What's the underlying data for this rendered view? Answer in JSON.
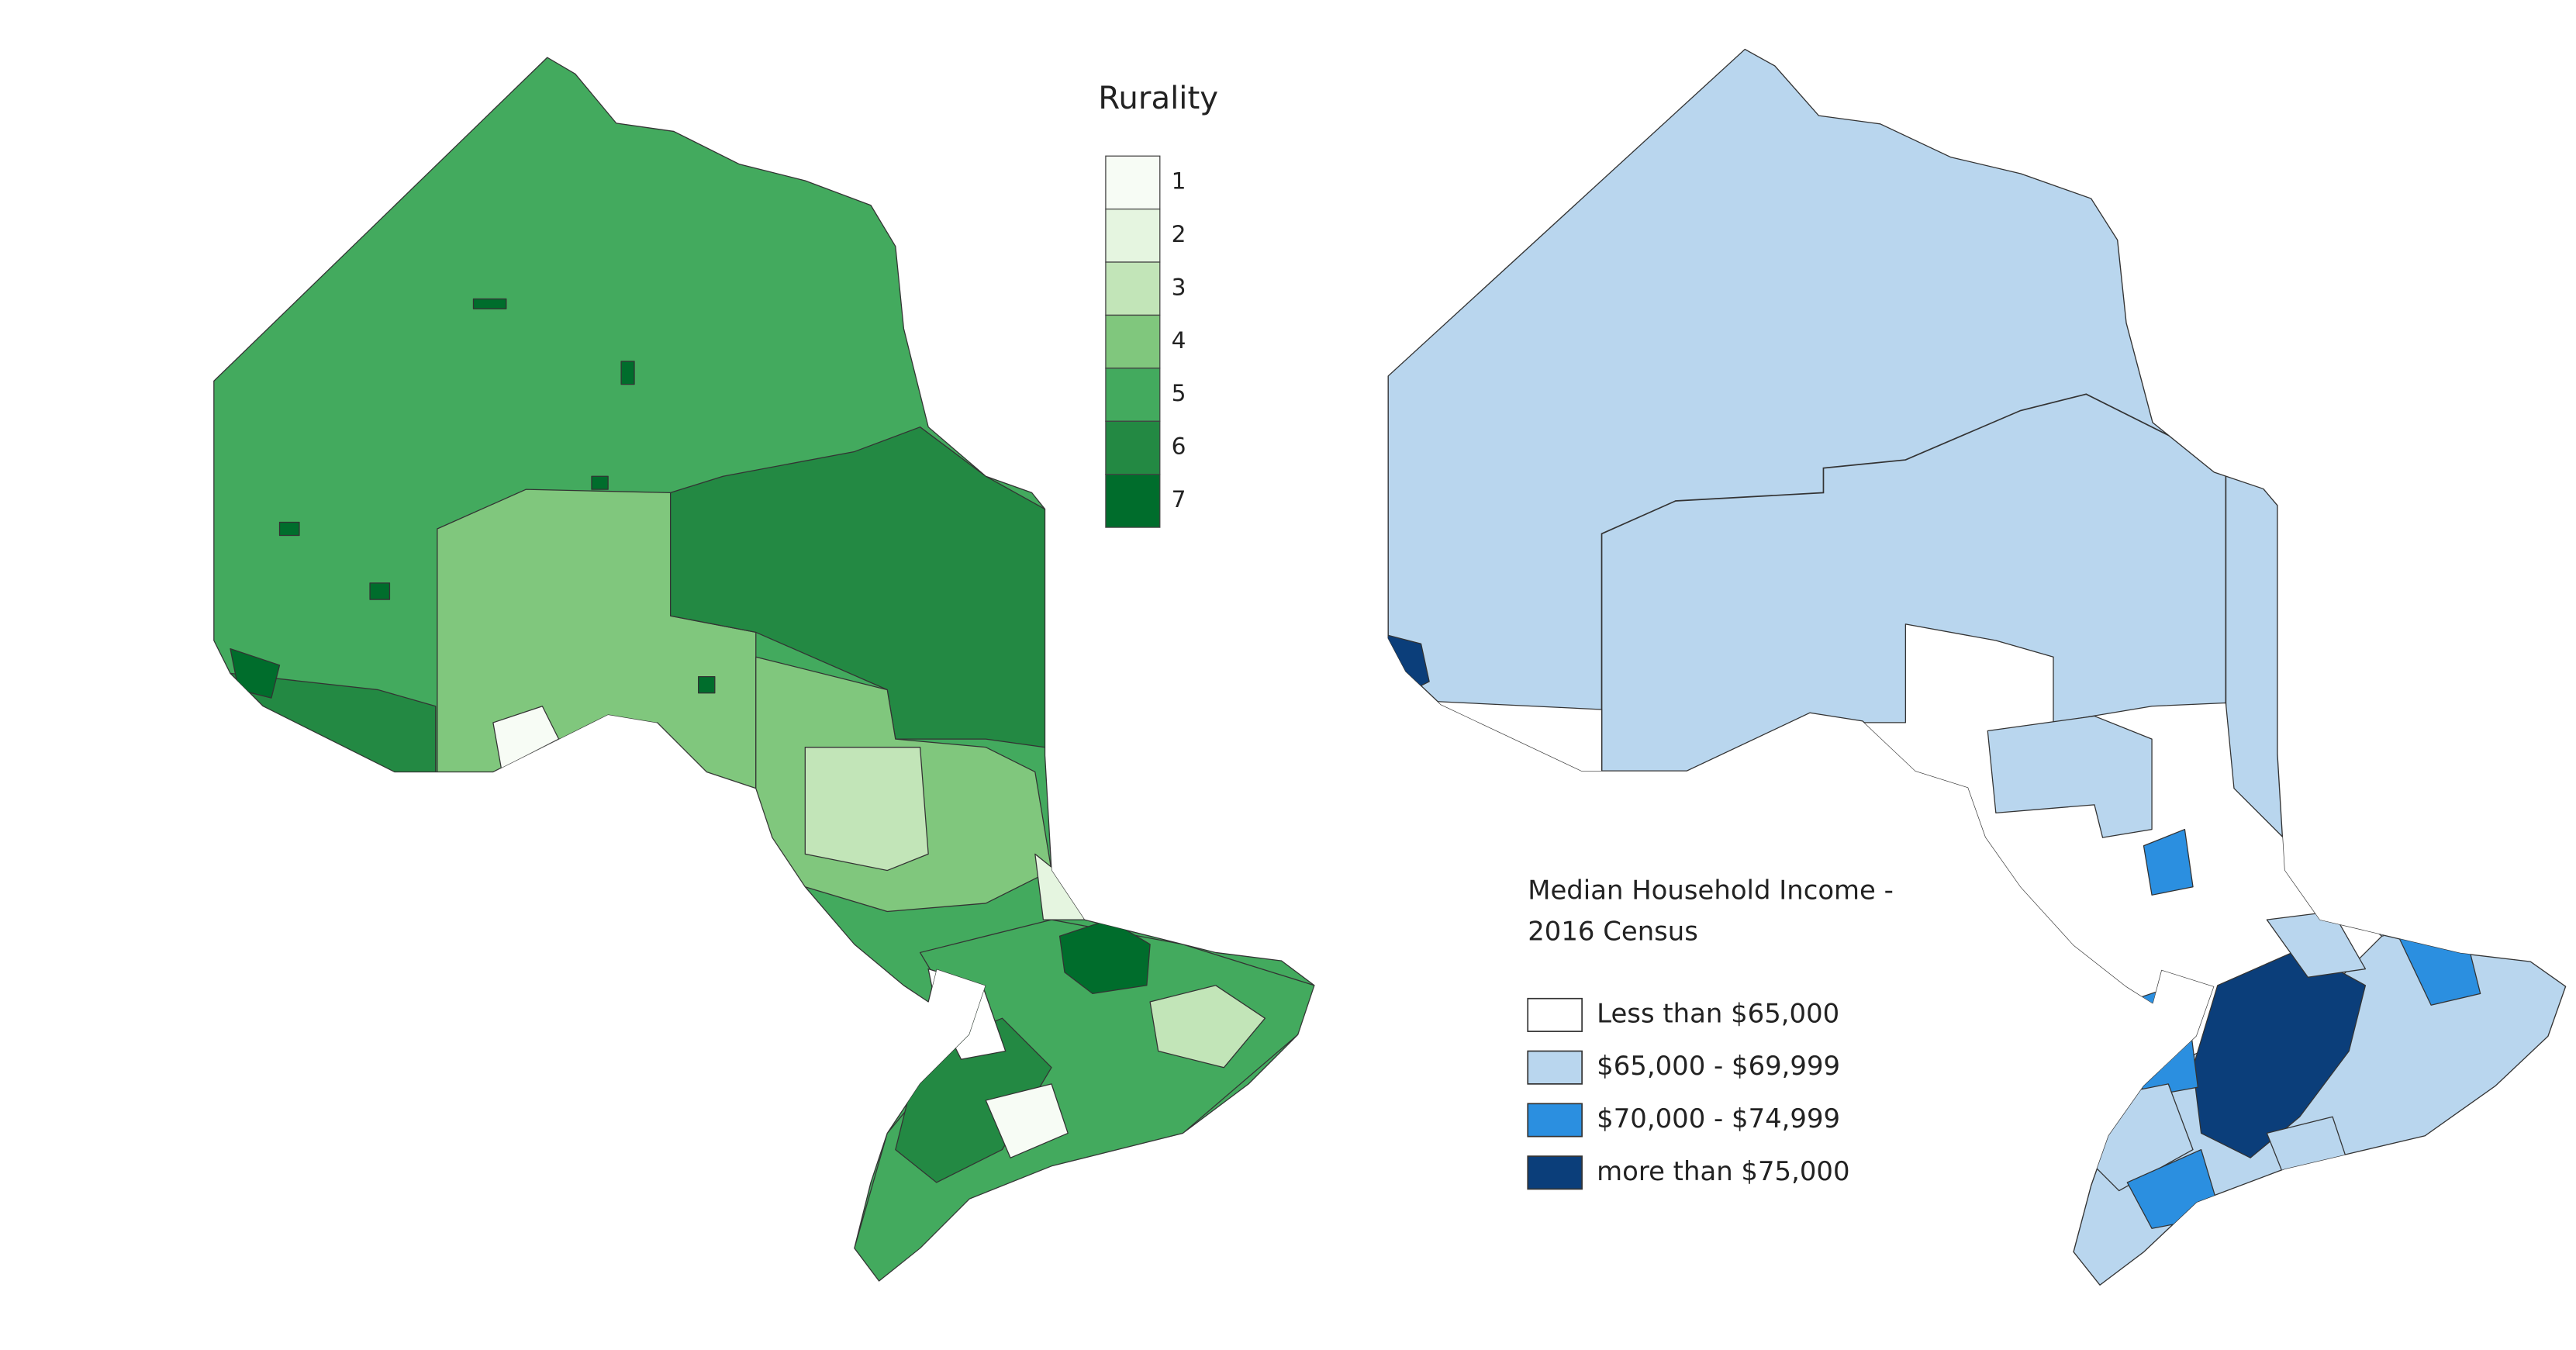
{
  "left_map": {
    "legend": {
      "title": "Rurality",
      "classes": [
        {
          "label": "1",
          "color": "#f7fcf5"
        },
        {
          "label": "2",
          "color": "#e5f5e0"
        },
        {
          "label": "3",
          "color": "#c2e5b8"
        },
        {
          "label": "4",
          "color": "#80c77d"
        },
        {
          "label": "5",
          "color": "#43aa5e"
        },
        {
          "label": "6",
          "color": "#238943"
        },
        {
          "label": "7",
          "color": "#006d2c"
        }
      ]
    }
  },
  "right_map": {
    "legend": {
      "title_lines": [
        "Median Household Income -",
        "2016 Census"
      ],
      "classes": [
        {
          "label": "Less than $65,000",
          "color": "#ffffff"
        },
        {
          "label": "$65,000 - $69,999",
          "color": "#b9d6ee"
        },
        {
          "label": "$70,000 - $74,999",
          "color": "#2b8fe0"
        },
        {
          "label": "more than $75,000",
          "color": "#0b3e7a"
        }
      ]
    }
  }
}
